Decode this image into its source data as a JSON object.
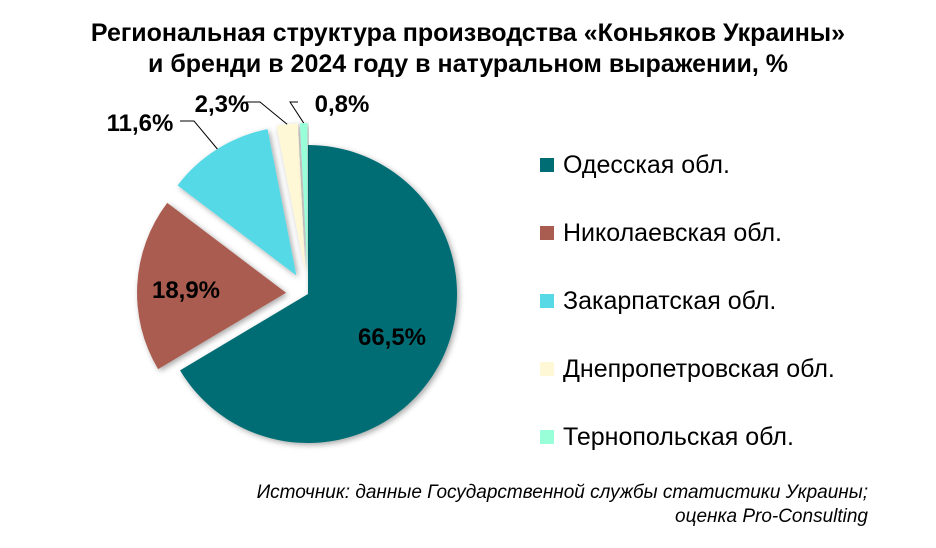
{
  "chart_data": {
    "type": "pie",
    "title": "Региональная структура производства «Коньяков Украины» и бренди в 2024 году в натуральном выражении, %",
    "title_lines": [
      "Региональная структура производства «Коньяков Украины»",
      "и бренди в 2024 году в натуральном выражении, %"
    ],
    "categories": [
      "Одесская обл.",
      "Николаевская обл.",
      "Закарпатская обл.",
      "Днепропетровская обл.",
      "Тернопольская обл."
    ],
    "values": [
      66.5,
      18.9,
      11.6,
      2.3,
      0.8
    ],
    "data_labels": [
      "66,5%",
      "18,9%",
      "11,6%",
      "2,3%",
      "0,8%"
    ],
    "colors": [
      "#006D75",
      "#A95C50",
      "#57D9E6",
      "#FFF8D6",
      "#99FFD9"
    ],
    "legend_position": "right",
    "exploded": [
      false,
      true,
      true,
      true,
      true
    ]
  },
  "source_lines": [
    "Источник: данные Государственной службы статистики Украины;",
    "оценка Pro-Consulting"
  ]
}
